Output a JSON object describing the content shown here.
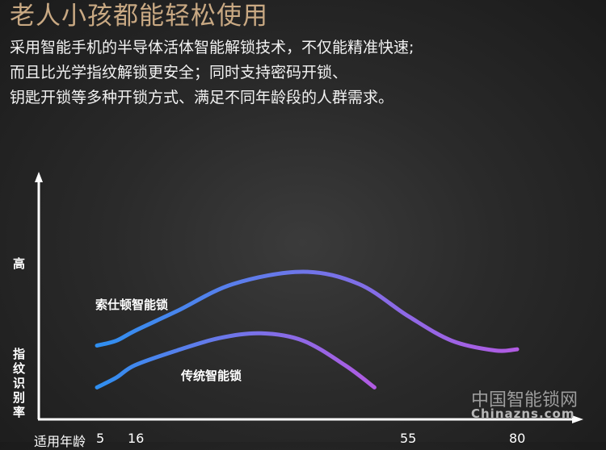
{
  "header": {
    "title": "老人小孩都能轻松使用",
    "lines": [
      "采用智能手机的半导体活体智能解锁技术，不仅能精准快速;",
      "而且比光学指纹解锁更安全；同时支持密码开锁、",
      "钥匙开锁等多种开锁方式、满足不同年龄段的人群需求。"
    ]
  },
  "colors": {
    "title": "#c9a983",
    "curve_start": "#2f8ff0",
    "curve_end": "#b15be2"
  },
  "chart_data": {
    "type": "line",
    "ylabel": "指纹识别率",
    "y_top_label": "高",
    "xlabel": "适用年龄",
    "x_ticks": [
      "5",
      "16",
      "55",
      "80"
    ],
    "grid": false,
    "series": [
      {
        "name": "索仕顿智能锁",
        "points": [
          [
            3.7,
            30
          ],
          [
            10,
            32
          ],
          [
            16,
            36
          ],
          [
            22,
            44
          ],
          [
            30,
            55
          ],
          [
            40,
            60
          ],
          [
            48,
            55
          ],
          [
            55,
            42
          ],
          [
            65,
            32
          ],
          [
            75,
            28
          ],
          [
            80,
            28.5
          ]
        ]
      },
      {
        "name": "传统智能锁",
        "points": [
          [
            3.7,
            13
          ],
          [
            10,
            17
          ],
          [
            16,
            22
          ],
          [
            22,
            28
          ],
          [
            28,
            33
          ],
          [
            34,
            35
          ],
          [
            40,
            32
          ],
          [
            46,
            22
          ],
          [
            50.2,
            13
          ]
        ]
      }
    ]
  },
  "watermark": {
    "cn": "中国智能锁网",
    "en": "Chinazns.com"
  }
}
